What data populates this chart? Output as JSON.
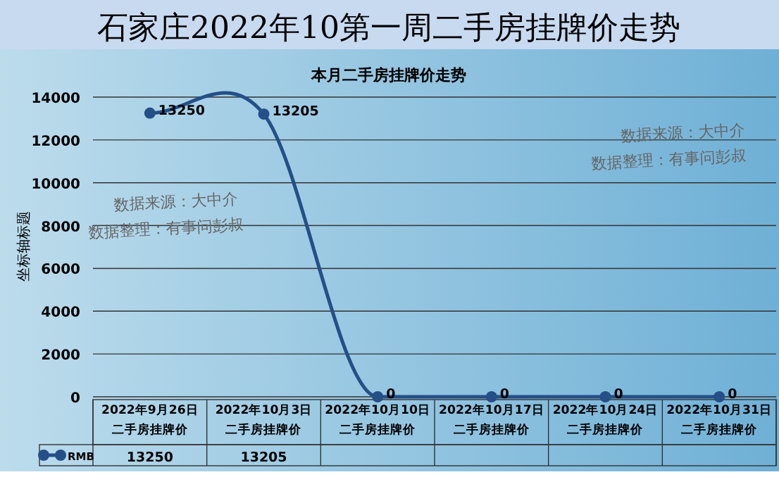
{
  "chart_data": {
    "type": "line",
    "title": "石家庄2022年10第一周二手房挂牌价走势",
    "subtitle": "本月二手房挂牌价走势",
    "ylabel": "坐标轴标题",
    "categories": [
      "2022年9月26日二手房挂牌价",
      "2022年10月3日二手房挂牌价",
      "2022年10月10日二手房挂牌价",
      "2022年10月17日二手房挂牌价",
      "2022年10月24日二手房挂牌价",
      "2022年10月31日二手房挂牌价"
    ],
    "series": [
      {
        "name": "RMB",
        "color": "#254f87",
        "values": [
          13250,
          13205,
          0,
          0,
          0,
          0
        ],
        "value_labels": [
          "13250",
          "13205",
          "0",
          "0",
          "0",
          "0"
        ]
      }
    ],
    "marker": "circle",
    "grid": "y",
    "ylim": [
      0,
      14000
    ],
    "yticks": [
      0,
      2000,
      4000,
      6000,
      8000,
      10000,
      12000,
      14000
    ],
    "annotations": [
      "数据来源：大中介",
      "数据整理：有事问彭叔",
      "数据来源：大中介",
      "数据整理：有事问彭叔"
    ]
  }
}
